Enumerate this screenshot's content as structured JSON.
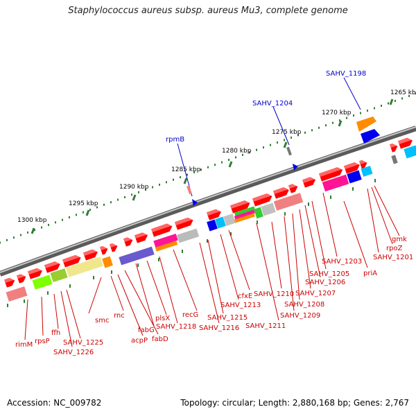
{
  "title": "Staphylococcus aureus subsp. aureus Mu3, complete genome",
  "footer": {
    "accession": "Accession: NC_009782",
    "stats": "Topology: circular; Length: 2,880,168 bp; Genes: 2,767"
  },
  "colors": {
    "backbone": "#777777",
    "scale_dots": "#2e7d32",
    "gene_forward": "#ff0000",
    "gene_label": "#cc0000",
    "highlight_label": "#0000cc"
  },
  "scale_labels": [
    "1265 kbp",
    "1270 kbp",
    "1275 kbp",
    "1280 kbp",
    "1285 kbp",
    "1290 kbp",
    "1295 kbp",
    "1300 kbp"
  ],
  "highlighted_genes": [
    "SAHV_1198",
    "SAHV_1204",
    "rpmB"
  ],
  "gene_labels": [
    "gmk",
    "rpoZ",
    "SAHV_1201",
    "priA",
    "SAHV_1203",
    "SAHV_1205",
    "SAHV_1206",
    "SAHV_1207",
    "SAHV_1208",
    "SAHV_1209",
    "SAHV_1210",
    "cfxE",
    "SAHV_1211",
    "SAHV_1213",
    "SAHV_1215",
    "SAHV_1216",
    "recG",
    "SAHV_1218",
    "plsX",
    "fabG",
    "fabD",
    "acpP",
    "rnc",
    "smc",
    "SAHV_1225",
    "SAHV_1226",
    "ffh",
    "rpsP",
    "rimM"
  ]
}
